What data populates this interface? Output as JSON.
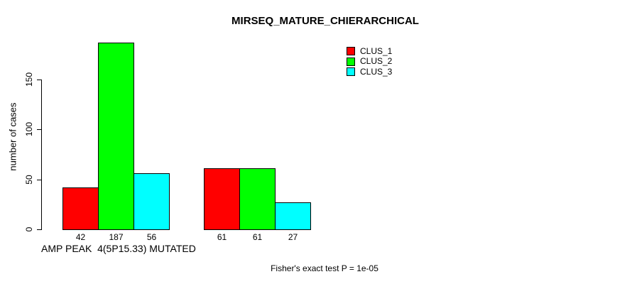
{
  "chart_data": {
    "type": "bar",
    "title": "MIRSEQ_MATURE_CHIERARCHICAL",
    "ylabel": "number of cases",
    "xlabel": "AMP PEAK  4(5P15.33) MUTATED",
    "annotation": "Fisher's exact test P = 1e-05",
    "ylim": [
      0,
      150
    ],
    "yticks": [
      0,
      50,
      100,
      150
    ],
    "grid": false,
    "legend_position": "top-right-inside",
    "series": [
      {
        "name": "CLUS_1",
        "color": "#FF0000"
      },
      {
        "name": "CLUS_2",
        "color": "#00FF00"
      },
      {
        "name": "CLUS_3",
        "color": "#00FFFF"
      }
    ],
    "groups": [
      {
        "values": [
          42,
          187,
          56
        ]
      },
      {
        "values": [
          61,
          61,
          27
        ]
      }
    ],
    "bar_value_labels": [
      [
        "42",
        "187",
        "56"
      ],
      [
        "61",
        "61",
        "27"
      ]
    ],
    "bar_outline_color": "#000000",
    "background_color": "#FFFFFF"
  }
}
